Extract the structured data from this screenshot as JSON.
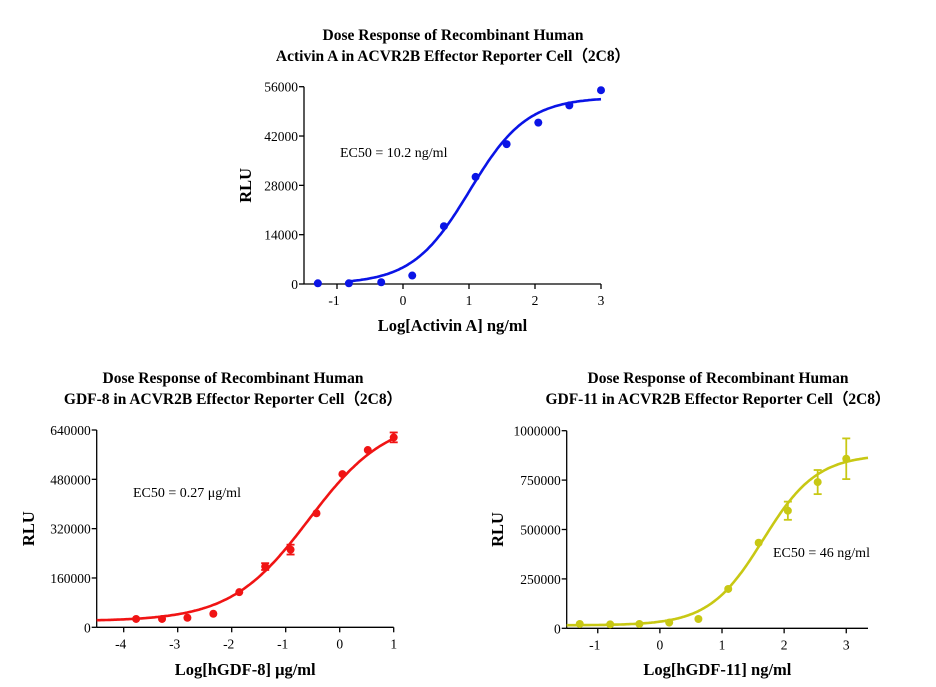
{
  "chart_data": [
    {
      "type": "scatter",
      "title": [
        "Dose Response of Recombinant Human",
        "Activin A in ACVR2B Effector Reporter Cell（2C8）"
      ],
      "xlabel": "Log[Activin A] ng/ml",
      "ylabel": "RLU",
      "annotation": "EC50 = 10.2 ng/ml",
      "color": "#0a14e6",
      "xlim": [
        -1.5,
        3
      ],
      "ylim": [
        0,
        56000
      ],
      "xticks": [
        -1,
        0,
        1,
        2,
        3
      ],
      "xtick_labels": [
        "-1",
        "0",
        "1",
        "2",
        "3"
      ],
      "yticks": [
        0,
        14000,
        28000,
        42000,
        56000
      ],
      "ytick_labels": [
        "0",
        "14000",
        "28000",
        "42000",
        "56000"
      ],
      "grid": false,
      "x": [
        -1.29,
        -0.82,
        -0.33,
        0.14,
        0.62,
        1.1,
        1.57,
        2.05,
        2.52,
        3.0
      ],
      "y": [
        200,
        200,
        500,
        2400,
        16400,
        30400,
        39700,
        45800,
        50700,
        55000
      ],
      "yerr": [
        0,
        0,
        0,
        0,
        0,
        0,
        0,
        0,
        0,
        0
      ],
      "fit": {
        "model": "4PL",
        "bottom": 0,
        "top": 53000,
        "logEC50": 1.01,
        "hill": 1.0
      }
    },
    {
      "type": "scatter",
      "title": [
        "Dose Response of Recombinant Human",
        "GDF-8 in ACVR2B Effector Reporter Cell（2C8）"
      ],
      "xlabel": "Log[hGDF-8] μg/ml",
      "ylabel": "RLU",
      "annotation": "EC50 = 0.27 μg/ml",
      "color": "#f01414",
      "xlim": [
        -4.5,
        1
      ],
      "ylim": [
        0,
        640000
      ],
      "xticks": [
        -4,
        -3,
        -2,
        -1,
        0,
        1
      ],
      "xtick_labels": [
        "-4",
        "-3",
        "-2",
        "-1",
        "0",
        "1"
      ],
      "yticks": [
        0,
        160000,
        320000,
        480000,
        640000
      ],
      "ytick_labels": [
        "0",
        "160000",
        "320000",
        "480000",
        "640000"
      ],
      "grid": false,
      "x": [
        -3.77,
        -3.29,
        -2.82,
        -2.34,
        -1.86,
        -1.38,
        -0.91,
        -0.43,
        0.05,
        0.52,
        1.0
      ],
      "y": [
        27000,
        27000,
        31000,
        44000,
        114000,
        197000,
        252000,
        370000,
        497000,
        575000,
        616000
      ],
      "yerr": [
        0,
        0,
        0,
        0,
        0,
        11000,
        16000,
        0,
        0,
        0,
        16000
      ],
      "fit": {
        "model": "4PL",
        "bottom": 20000,
        "top": 680000,
        "logEC50": -0.57,
        "hill": 0.6
      }
    },
    {
      "type": "scatter",
      "title": [
        "Dose Response of Recombinant Human",
        "GDF-11 in ACVR2B Effector Reporter Cell（2C8）"
      ],
      "xlabel": "Log[hGDF-11] ng/ml",
      "ylabel": "RLU",
      "annotation": "EC50 = 46 ng/ml",
      "color": "#c8c814",
      "xlim": [
        -1.5,
        3.35
      ],
      "ylim": [
        0,
        1000000
      ],
      "xticks": [
        -1,
        0,
        1,
        2,
        3
      ],
      "xtick_labels": [
        "-1",
        "0",
        "1",
        "2",
        "3"
      ],
      "yticks": [
        0,
        250000,
        500000,
        750000,
        1000000
      ],
      "ytick_labels": [
        "0",
        "250000",
        "500000",
        "750000",
        "1000000"
      ],
      "grid": false,
      "x": [
        -1.29,
        -0.8,
        -0.33,
        0.15,
        0.62,
        1.1,
        1.59,
        2.06,
        2.54,
        3.0
      ],
      "y": [
        22000,
        20000,
        22000,
        29000,
        47000,
        199000,
        433000,
        595000,
        740000,
        858000
      ],
      "yerr": [
        0,
        0,
        0,
        0,
        0,
        0,
        0,
        46000,
        61000,
        103000
      ],
      "fit": {
        "model": "4PL",
        "bottom": 15000,
        "top": 880000,
        "logEC50": 1.66,
        "hill": 1.0
      }
    }
  ]
}
